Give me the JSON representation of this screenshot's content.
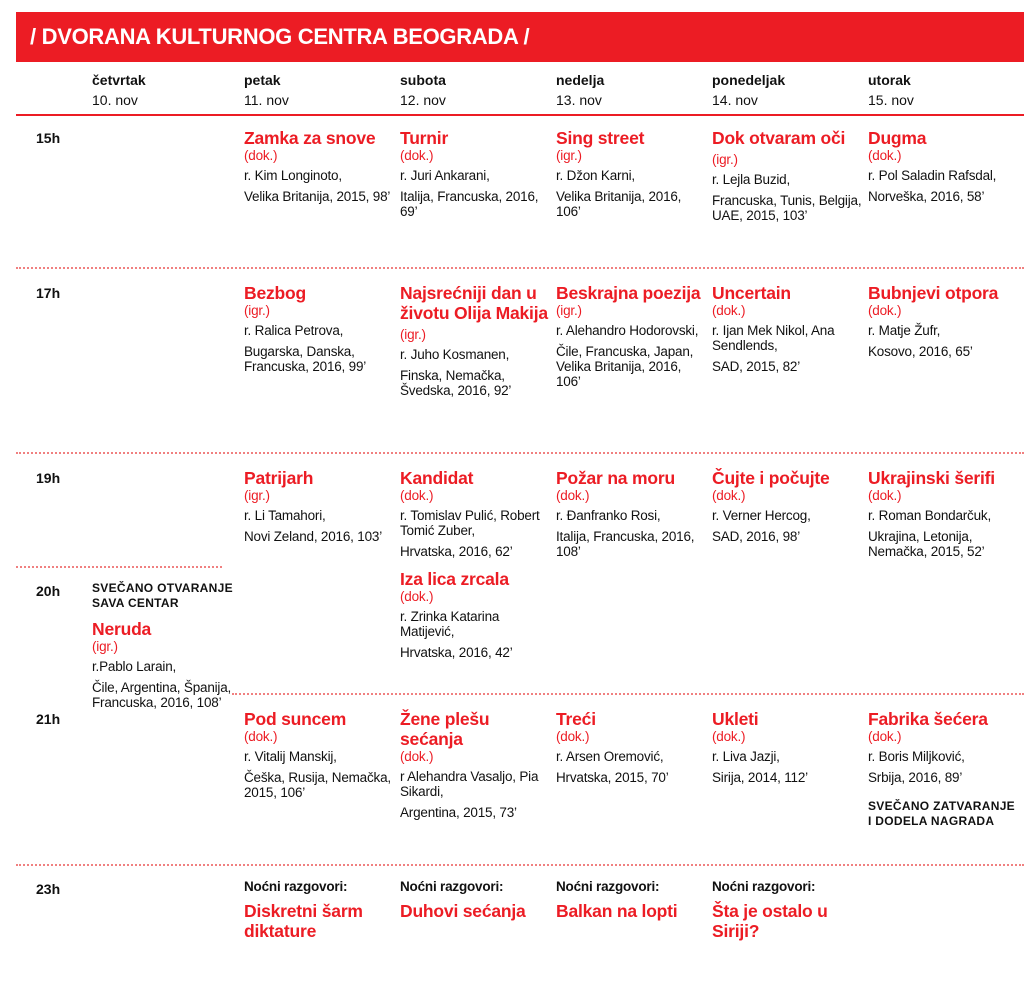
{
  "header": {
    "title": "/ DVORANA KULTURNOG CENTRA BEOGRADA /"
  },
  "colors": {
    "accent": "#ec1c24"
  },
  "days": [
    {
      "name": "četvrtak",
      "date": "10. nov"
    },
    {
      "name": "petak",
      "date": "11. nov"
    },
    {
      "name": "subota",
      "date": "12. nov"
    },
    {
      "name": "nedelja",
      "date": "13. nov"
    },
    {
      "name": "ponedeljak",
      "date": "14. nov"
    },
    {
      "name": "utorak",
      "date": "15. nov"
    }
  ],
  "times": [
    "15h",
    "17h",
    "19h",
    "20h",
    "21h",
    "23h"
  ],
  "entries": [
    {
      "day": 1,
      "time": "15h",
      "title": "Zamka za snove",
      "type": "(dok.)",
      "director": "r. Kim Longinoto,",
      "country": "Velika Britanija, 2015, 98’"
    },
    {
      "day": 2,
      "time": "15h",
      "title": "Turnir",
      "type": "(dok.)",
      "director": "r. Juri Ankarani,",
      "country": "Italija, Francuska, 2016, 69’"
    },
    {
      "day": 3,
      "time": "15h",
      "title": "Sing street",
      "type": "(igr.)",
      "director": "r. Džon Karni,",
      "country": "Velika Britanija, 2016, 106’"
    },
    {
      "day": 4,
      "time": "15h",
      "title": "Dok otvaram oči",
      "type": "(igr.)",
      "type_inline": true,
      "director": "r. Lejla Buzid,",
      "country": "Francuska, Tunis, Belgija, UAE, 2015, 103’"
    },
    {
      "day": 5,
      "time": "15h",
      "title": "Dugma",
      "type": "(dok.)",
      "director": "r. Pol Saladin Rafsdal,",
      "country": "Norveška, 2016, 58’"
    },
    {
      "day": 1,
      "time": "17h",
      "title": "Bezbog",
      "type": "(igr.)",
      "director": "r. Ralica Petrova,",
      "country": "Bugarska, Danska, Francuska, 2016, 99’"
    },
    {
      "day": 2,
      "time": "17h",
      "title": "Najsrećniji dan u životu Olija Makija",
      "type": "(igr.)",
      "type_inline": true,
      "director": "r. Juho Kosmanen,",
      "country": "Finska, Nemačka, Švedska, 2016, 92’"
    },
    {
      "day": 3,
      "time": "17h",
      "title": "Beskrajna poezija",
      "type": "(igr.)",
      "director": "r. Alehandro Hodorovski,",
      "country": "Čile, Francuska, Japan, Velika Britanija, 2016, 106’"
    },
    {
      "day": 4,
      "time": "17h",
      "title": "Uncertain",
      "type": "(dok.)",
      "director": "r. Ijan Mek Nikol, Ana Sendlends,",
      "country": "SAD, 2015, 82’"
    },
    {
      "day": 5,
      "time": "17h",
      "title": "Bubnjevi otpora",
      "type": "(dok.)",
      "director": "r. Matje Žufr,",
      "country": "Kosovo, 2016, 65’"
    },
    {
      "day": 1,
      "time": "19h",
      "title": "Patrijarh",
      "type": "(igr.)",
      "director": "r. Li Tamahori,",
      "country": "Novi Zeland, 2016, 103’"
    },
    {
      "day": 2,
      "time": "19h",
      "title": "Kandidat",
      "type": "(dok.)",
      "director": "r. Tomislav Pulić, Robert Tomić Zuber,",
      "country": "Hrvatska, 2016, 62’",
      "next": {
        "title": "Iza lica zrcala",
        "type": "(dok.)",
        "director": "r. Zrinka Katarina Matijević,",
        "country": "Hrvatska, 2016, 42’"
      }
    },
    {
      "day": 3,
      "time": "19h",
      "title": "Požar na moru",
      "type": "(dok.)",
      "director": "r. Đanfranko Rosi,",
      "country": "Italija, Francuska, 2016, 108’"
    },
    {
      "day": 4,
      "time": "19h",
      "title": "Čujte i počujte",
      "type": "(dok.)",
      "director": "r. Verner Hercog,",
      "country": "SAD, 2016, 98’"
    },
    {
      "day": 5,
      "time": "19h",
      "title": "Ukrajinski šerifi",
      "type": "(dok.)",
      "director": "r. Roman Bondarčuk,",
      "country": "Ukrajina, Letonija, Nemačka, 2015, 52’"
    },
    {
      "day": 0,
      "time": "20h",
      "note": "SVEČANO OTVARANJE SAVA CENTAR",
      "title": "Neruda",
      "type": "(igr.)",
      "director": "r.Pablo Larain,",
      "country": "Čile, Argentina, Španija, Francuska, 2016, 108’"
    },
    {
      "day": 1,
      "time": "21h",
      "title": "Pod suncem",
      "type": "(dok.)",
      "director": "r. Vitalij Manskij,",
      "country": "Češka, Rusija, Nemačka, 2015, 106’"
    },
    {
      "day": 2,
      "time": "21h",
      "title": "Žene plešu sećanja",
      "type": "(dok.)",
      "director": "r Alehandra Vasaljo, Pia Sikardi,",
      "country": "Argentina, 2015, 73’"
    },
    {
      "day": 3,
      "time": "21h",
      "title": "Treći",
      "type": "(dok.)",
      "director": "r. Arsen Oremović,",
      "country": "Hrvatska, 2015, 70’"
    },
    {
      "day": 4,
      "time": "21h",
      "title": "Ukleti",
      "type": "(dok.)",
      "director": "r. Liva Jazji,",
      "country": "Sirija, 2014, 112’"
    },
    {
      "day": 5,
      "time": "21h",
      "title": "Fabrika šećera",
      "type": "(dok.)",
      "director": "r. Boris Miljković,",
      "country": "Srbija, 2016, 89’",
      "note_after": "SVEČANO ZATVARANJE I DODELA NAGRADA"
    },
    {
      "day": 1,
      "time": "23h",
      "label": "Noćni razgovori:",
      "title": "Diskretni šarm diktature"
    },
    {
      "day": 2,
      "time": "23h",
      "label": "Noćni razgovori:",
      "title": "Duhovi sećanja"
    },
    {
      "day": 3,
      "time": "23h",
      "label": "Noćni razgovori:",
      "title": "Balkan na lopti"
    },
    {
      "day": 4,
      "time": "23h",
      "label": "Noćni razgovori:",
      "title": "Šta je ostalo u Siriji?"
    }
  ]
}
